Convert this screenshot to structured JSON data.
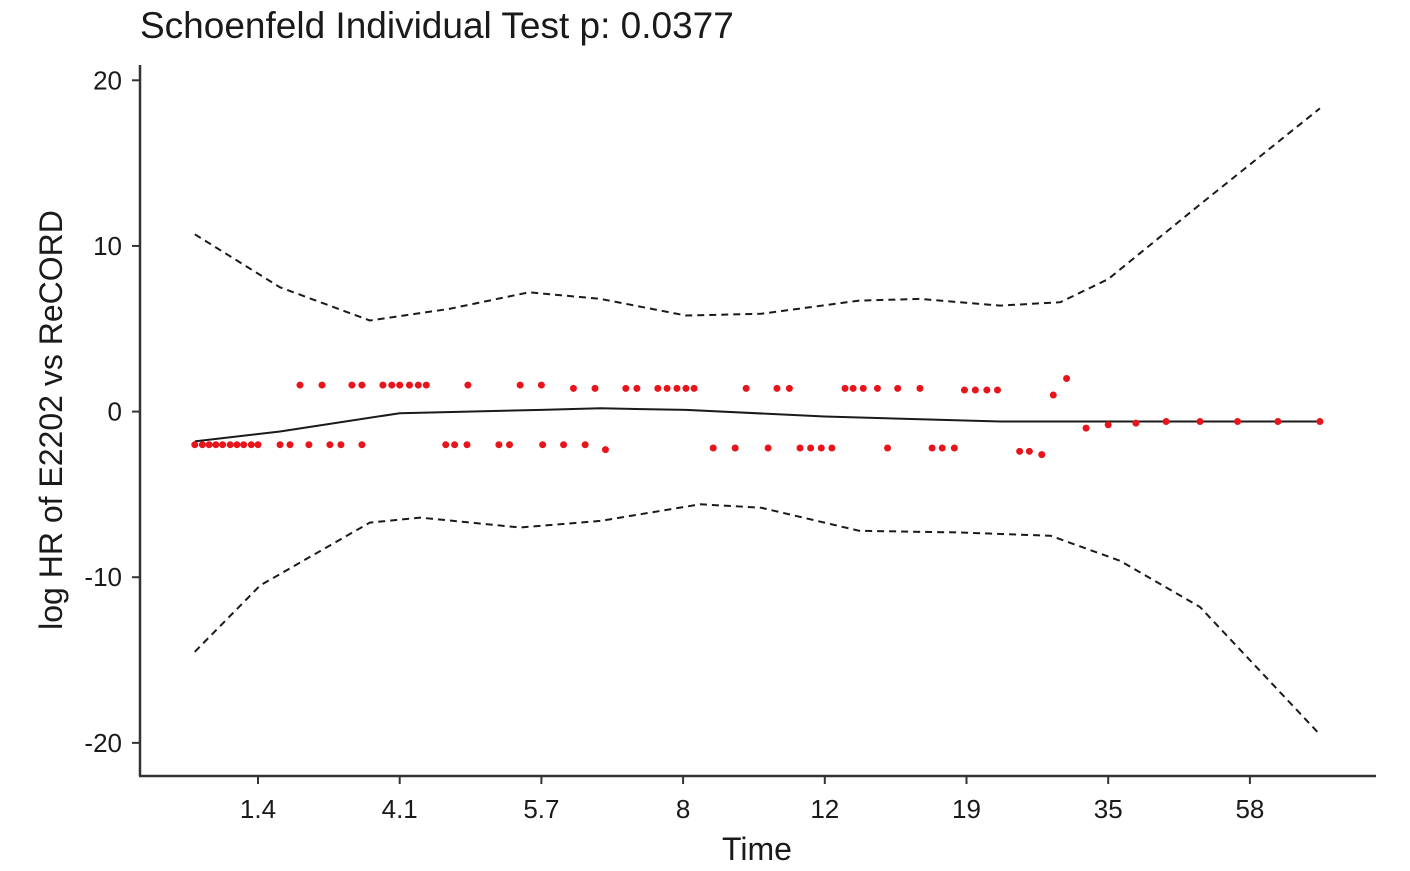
{
  "chart_data": {
    "type": "scatter",
    "title": "Schoenfeld Individual Test p: 0.0377",
    "x_label": "Time",
    "y_label": "log HR of E2202 vs ReCORD",
    "xlim": [
      0,
      100
    ],
    "xticks": [
      1.4,
      4.1,
      5.7,
      8,
      12,
      19,
      35,
      58
    ],
    "ylim": [
      -22,
      20.5
    ],
    "yticks": [
      -20,
      -10,
      0,
      10,
      20
    ],
    "points": {
      "color": "#e8141b",
      "x": [
        0.65,
        0.74,
        0.82,
        0.9,
        0.98,
        1.07,
        1.15,
        1.23,
        1.32,
        1.4,
        1.82,
        2.01,
        2.37,
        2.77,
        2.98,
        3.38,
        2.2,
        2.62,
        3.19,
        3.38,
        3.78,
        3.95,
        4.1,
        4.21,
        4.31,
        4.4,
        4.62,
        4.72,
        4.86,
        4.87,
        5.22,
        5.34,
        5.46,
        5.7,
        5.72,
        6.06,
        6.41,
        6.74,
        6.22,
        6.57,
        7.07,
        7.25,
        7.59,
        7.74,
        7.9,
        8.08,
        8.31,
        9.78,
        10.65,
        11.0,
        8.85,
        9.47,
        10.4,
        11.3,
        11.6,
        11.9,
        12.35,
        13.0,
        13.4,
        13.9,
        14.6,
        15.6,
        16.7,
        15.1,
        17.3,
        17.8,
        18.4,
        18.9,
        20.0,
        21.3,
        22.5,
        25.0,
        26.1,
        27.5,
        28.8,
        30.3,
        32.5,
        35,
        39.5,
        44.4,
        49.9,
        56.0,
        67.4,
        81.5
      ],
      "y": [
        -2,
        -2,
        -2,
        -2,
        -2,
        -2,
        -2,
        -2,
        -2,
        -2,
        -2,
        -2,
        -2,
        -2,
        -2,
        -2,
        1.6,
        1.6,
        1.6,
        1.6,
        1.6,
        1.6,
        1.6,
        1.6,
        1.6,
        1.6,
        -2,
        -2,
        -2,
        1.6,
        -2,
        -2,
        1.6,
        1.6,
        -2,
        -2,
        -2,
        -2.3,
        1.4,
        1.4,
        1.4,
        1.4,
        1.4,
        1.4,
        1.4,
        1.4,
        1.4,
        1.4,
        1.4,
        1.4,
        -2.2,
        -2.2,
        -2.2,
        -2.2,
        -2.2,
        -2.2,
        -2.2,
        1.4,
        1.4,
        1.4,
        1.4,
        1.4,
        1.4,
        -2.2,
        -2.2,
        -2.2,
        -2.2,
        1.3,
        1.3,
        1.3,
        1.3,
        -2.4,
        -2.4,
        -2.6,
        1.0,
        2.0,
        -1.0,
        -0.8,
        -0.7,
        -0.6,
        -0.6,
        -0.6,
        -0.6,
        -0.6
      ]
    },
    "lines": [
      {
        "style": "solid",
        "color": "#1a1a1a",
        "x": [
          0.65,
          1.82,
          4.1,
          5.7,
          6.66,
          8.08,
          12,
          22.8,
          29.6,
          81.5
        ],
        "y": [
          -1.8,
          -1.2,
          -0.1,
          0.1,
          0.2,
          0.1,
          -0.3,
          -0.6,
          -0.6,
          -0.6
        ]
      },
      {
        "style": "dashed",
        "color": "#1a1a1a",
        "x": [
          0.65,
          1.82,
          3.53,
          4.66,
          5.56,
          6.66,
          8.08,
          10.2,
          13.7,
          16.7,
          22.8,
          29.6,
          35,
          49.9,
          81.5
        ],
        "y": [
          10.7,
          7.5,
          5.5,
          6.2,
          7.2,
          6.8,
          5.8,
          5.9,
          6.7,
          6.8,
          6.4,
          6.6,
          8,
          12.5,
          18.3
        ]
      },
      {
        "style": "dashed",
        "color": "#1a1a1a",
        "x": [
          0.65,
          1.44,
          3.53,
          4.33,
          5.46,
          6.66,
          8.48,
          10.2,
          13.7,
          18.7,
          28.5,
          36.9,
          49.9,
          81.5
        ],
        "y": [
          -14.5,
          -10.5,
          -6.7,
          -6.4,
          -7,
          -6.6,
          -5.6,
          -5.8,
          -7.2,
          -7.3,
          -7.5,
          -9,
          -11.8,
          -19.5
        ]
      }
    ]
  }
}
